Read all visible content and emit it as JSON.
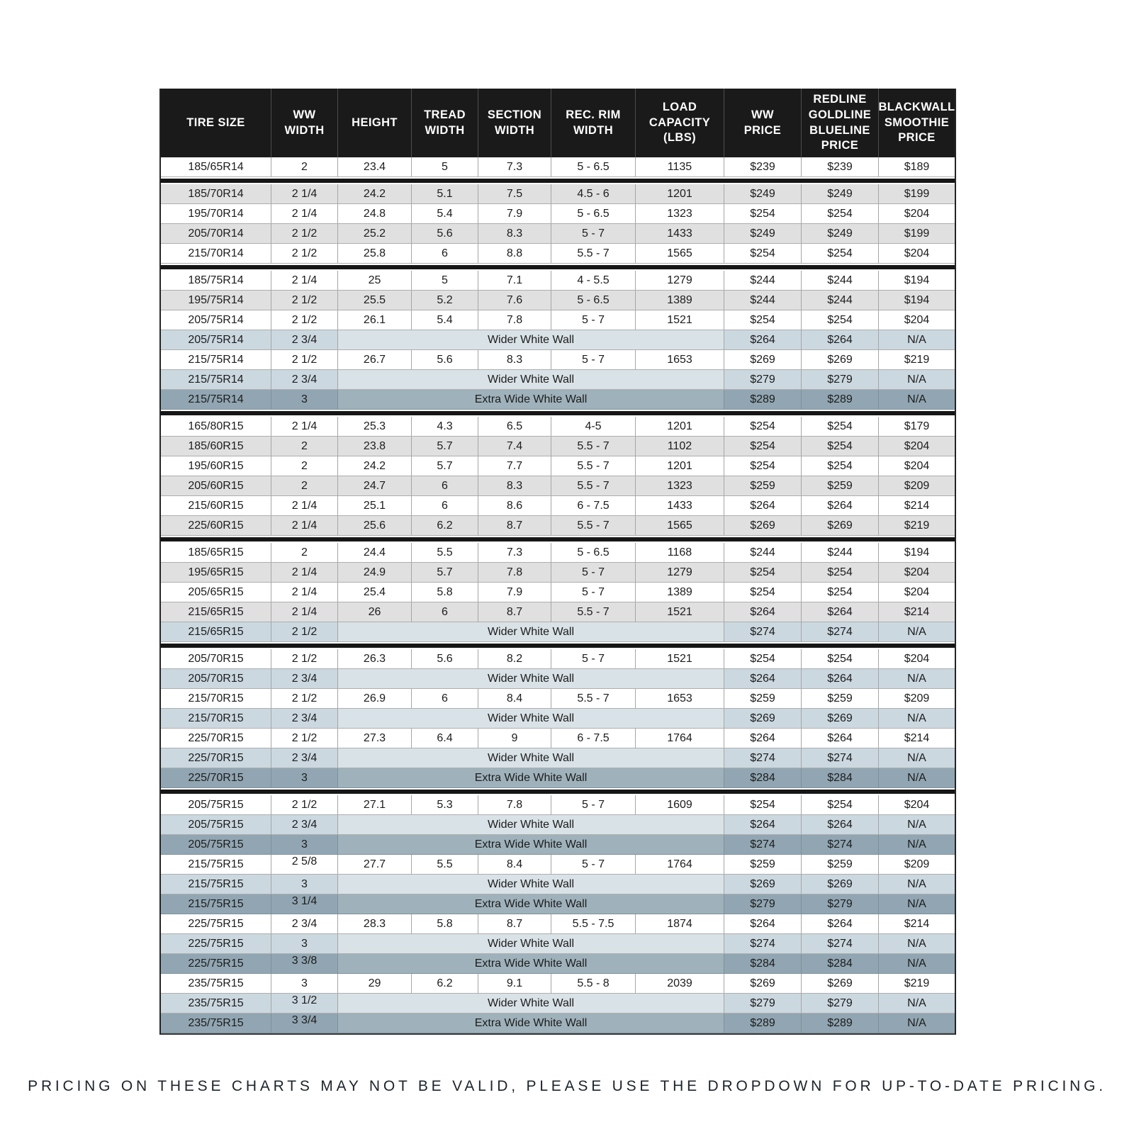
{
  "page": {
    "footer_note": "PRICING ON THESE CHARTS MAY NOT BE VALID, PLEASE USE THE DROPDOWN FOR UP-TO-DATE PRICING."
  },
  "colors": {
    "header_bg": "#1a1a1a",
    "header_text": "#ffffff",
    "row_white": "#ffffff",
    "row_gray": "#e0e0e0",
    "row_wider_whitewall_blue": "#cbd8e0",
    "row_extra_wide_whitewall_slate": "#91a6b2",
    "group_separator": "#161616",
    "grid_line": "#a6a6a6",
    "body_text": "#1c1c1c"
  },
  "chart_data": {
    "type": "table",
    "title": "",
    "column_keys": [
      "tire_size",
      "ww_width",
      "height",
      "tread_width",
      "section_width",
      "rec_rim_width",
      "load_capacity_lbs",
      "ww_price",
      "redline_goldline_blueline_price",
      "blackwall_smoothie_price"
    ],
    "columns": [
      "TIRE SIZE",
      "WW WIDTH",
      "HEIGHT",
      "TREAD WIDTH",
      "SECTION WIDTH",
      "REC. RIM WIDTH",
      "LOAD CAPACITY (LBS)",
      "WW PRICE",
      "REDLINE GOLDLINE BLUELINE PRICE",
      "BLACKWALL SMOOTHIE PRICE"
    ],
    "header_lines": [
      [
        "TIRE SIZE"
      ],
      [
        "WW",
        "WIDTH"
      ],
      [
        "HEIGHT"
      ],
      [
        "TREAD",
        "WIDTH"
      ],
      [
        "SECTION",
        "WIDTH"
      ],
      [
        "REC. RIM",
        "WIDTH"
      ],
      [
        "LOAD",
        "CAPACITY",
        "(LBS)"
      ],
      [
        "WW",
        "PRICE"
      ],
      [
        "REDLINE",
        "GOLDLINE",
        "BLUELINE",
        "PRICE"
      ],
      [
        "BLACKWALL",
        "SMOOTHIE",
        "PRICE"
      ]
    ],
    "groups": [
      {
        "rows": [
          {
            "tire_size": "185/65R14",
            "ww_width": "2",
            "height": "23.4",
            "tread_width": "5",
            "section_width": "7.3",
            "rec_rim_width": "5 - 6.5",
            "load_capacity": "1135",
            "ww_price": "$239",
            "line_price": "$239",
            "blackwall_price": "$189",
            "shade": "white"
          }
        ]
      },
      {
        "rows": [
          {
            "tire_size": "185/70R14",
            "ww_width": "2 1/4",
            "height": "24.2",
            "tread_width": "5.1",
            "section_width": "7.5",
            "rec_rim_width": "4.5 - 6",
            "load_capacity": "1201",
            "ww_price": "$249",
            "line_price": "$249",
            "blackwall_price": "$199",
            "shade": "gray"
          },
          {
            "tire_size": "195/70R14",
            "ww_width": "2 1/4",
            "height": "24.8",
            "tread_width": "5.4",
            "section_width": "7.9",
            "rec_rim_width": "5 - 6.5",
            "load_capacity": "1323",
            "ww_price": "$254",
            "line_price": "$254",
            "blackwall_price": "$204",
            "shade": "white"
          },
          {
            "tire_size": "205/70R14",
            "ww_width": "2 1/2",
            "height": "25.2",
            "tread_width": "5.6",
            "section_width": "8.3",
            "rec_rim_width": "5 - 7",
            "load_capacity": "1433",
            "ww_price": "$249",
            "line_price": "$249",
            "blackwall_price": "$199",
            "shade": "gray"
          },
          {
            "tire_size": "215/70R14",
            "ww_width": "2 1/2",
            "height": "25.8",
            "tread_width": "6",
            "section_width": "8.8",
            "rec_rim_width": "5.5 - 7",
            "load_capacity": "1565",
            "ww_price": "$254",
            "line_price": "$254",
            "blackwall_price": "$204",
            "shade": "white"
          }
        ]
      },
      {
        "rows": [
          {
            "tire_size": "185/75R14",
            "ww_width": "2 1/4",
            "height": "25",
            "tread_width": "5",
            "section_width": "7.1",
            "rec_rim_width": "4 - 5.5",
            "load_capacity": "1279",
            "ww_price": "$244",
            "line_price": "$244",
            "blackwall_price": "$194",
            "shade": "white"
          },
          {
            "tire_size": "195/75R14",
            "ww_width": "2 1/2",
            "height": "25.5",
            "tread_width": "5.2",
            "section_width": "7.6",
            "rec_rim_width": "5 - 6.5",
            "load_capacity": "1389",
            "ww_price": "$244",
            "line_price": "$244",
            "blackwall_price": "$194",
            "shade": "gray"
          },
          {
            "tire_size": "205/75R14",
            "ww_width": "2 1/2",
            "height": "26.1",
            "tread_width": "5.4",
            "section_width": "7.8",
            "rec_rim_width": "5 - 7",
            "load_capacity": "1521",
            "ww_price": "$254",
            "line_price": "$254",
            "blackwall_price": "$204",
            "shade": "white"
          },
          {
            "tire_size": "205/75R14",
            "ww_width": "2 3/4",
            "wall_label": "Wider White Wall",
            "ww_price": "$264",
            "line_price": "$264",
            "blackwall_price": "N/A",
            "shade": "blue"
          },
          {
            "tire_size": "215/75R14",
            "ww_width": "2 1/2",
            "height": "26.7",
            "tread_width": "5.6",
            "section_width": "8.3",
            "rec_rim_width": "5 - 7",
            "load_capacity": "1653",
            "ww_price": "$269",
            "line_price": "$269",
            "blackwall_price": "$219",
            "shade": "white"
          },
          {
            "tire_size": "215/75R14",
            "ww_width": "2 3/4",
            "wall_label": "Wider White Wall",
            "ww_price": "$279",
            "line_price": "$279",
            "blackwall_price": "N/A",
            "shade": "blue"
          },
          {
            "tire_size": "215/75R14",
            "ww_width": "3",
            "wall_label": "Extra Wide White Wall",
            "ww_price": "$289",
            "line_price": "$289",
            "blackwall_price": "N/A",
            "shade": "slate"
          }
        ]
      },
      {
        "rows": [
          {
            "tire_size": "165/80R15",
            "ww_width": "2 1/4",
            "height": "25.3",
            "tread_width": "4.3",
            "section_width": "6.5",
            "rec_rim_width": "4-5",
            "load_capacity": "1201",
            "ww_price": "$254",
            "line_price": "$254",
            "blackwall_price": "$179",
            "shade": "white"
          },
          {
            "tire_size": "185/60R15",
            "ww_width": "2",
            "height": "23.8",
            "tread_width": "5.7",
            "section_width": "7.4",
            "rec_rim_width": "5.5 - 7",
            "load_capacity": "1102",
            "ww_price": "$254",
            "line_price": "$254",
            "blackwall_price": "$204",
            "shade": "gray"
          },
          {
            "tire_size": "195/60R15",
            "ww_width": "2",
            "height": "24.2",
            "tread_width": "5.7",
            "section_width": "7.7",
            "rec_rim_width": "5.5 - 7",
            "load_capacity": "1201",
            "ww_price": "$254",
            "line_price": "$254",
            "blackwall_price": "$204",
            "shade": "white"
          },
          {
            "tire_size": "205/60R15",
            "ww_width": "2",
            "height": "24.7",
            "tread_width": "6",
            "section_width": "8.3",
            "rec_rim_width": "5.5 - 7",
            "load_capacity": "1323",
            "ww_price": "$259",
            "line_price": "$259",
            "blackwall_price": "$209",
            "shade": "gray"
          },
          {
            "tire_size": "215/60R15",
            "ww_width": "2 1/4",
            "height": "25.1",
            "tread_width": "6",
            "section_width": "8.6",
            "rec_rim_width": "6 - 7.5",
            "load_capacity": "1433",
            "ww_price": "$264",
            "line_price": "$264",
            "blackwall_price": "$214",
            "shade": "white"
          },
          {
            "tire_size": "225/60R15",
            "ww_width": "2 1/4",
            "height": "25.6",
            "tread_width": "6.2",
            "section_width": "8.7",
            "rec_rim_width": "5.5 - 7",
            "load_capacity": "1565",
            "ww_price": "$269",
            "line_price": "$269",
            "blackwall_price": "$219",
            "shade": "gray"
          }
        ]
      },
      {
        "rows": [
          {
            "tire_size": "185/65R15",
            "ww_width": "2",
            "height": "24.4",
            "tread_width": "5.5",
            "section_width": "7.3",
            "rec_rim_width": "5 - 6.5",
            "load_capacity": "1168",
            "ww_price": "$244",
            "line_price": "$244",
            "blackwall_price": "$194",
            "shade": "white"
          },
          {
            "tire_size": "195/65R15",
            "ww_width": "2 1/4",
            "height": "24.9",
            "tread_width": "5.7",
            "section_width": "7.8",
            "rec_rim_width": "5 - 7",
            "load_capacity": "1279",
            "ww_price": "$254",
            "line_price": "$254",
            "blackwall_price": "$204",
            "shade": "gray"
          },
          {
            "tire_size": "205/65R15",
            "ww_width": "2 1/4",
            "height": "25.4",
            "tread_width": "5.8",
            "section_width": "7.9",
            "rec_rim_width": "5 - 7",
            "load_capacity": "1389",
            "ww_price": "$254",
            "line_price": "$254",
            "blackwall_price": "$204",
            "shade": "white"
          },
          {
            "tire_size": "215/65R15",
            "ww_width": "2 1/4",
            "height": "26",
            "tread_width": "6",
            "section_width": "8.7",
            "rec_rim_width": "5.5 - 7",
            "load_capacity": "1521",
            "ww_price": "$264",
            "line_price": "$264",
            "blackwall_price": "$214",
            "shade": "gray"
          },
          {
            "tire_size": "215/65R15",
            "ww_width": "2 1/2",
            "wall_label": "Wider White Wall",
            "ww_price": "$274",
            "line_price": "$274",
            "blackwall_price": "N/A",
            "shade": "blue"
          }
        ]
      },
      {
        "rows": [
          {
            "tire_size": "205/70R15",
            "ww_width": "2 1/2",
            "height": "26.3",
            "tread_width": "5.6",
            "section_width": "8.2",
            "rec_rim_width": "5 - 7",
            "load_capacity": "1521",
            "ww_price": "$254",
            "line_price": "$254",
            "blackwall_price": "$204",
            "shade": "white"
          },
          {
            "tire_size": "205/70R15",
            "ww_width": "2 3/4",
            "wall_label": "Wider White Wall",
            "ww_price": "$264",
            "line_price": "$264",
            "blackwall_price": "N/A",
            "shade": "blue"
          },
          {
            "tire_size": "215/70R15",
            "ww_width": "2 1/2",
            "height": "26.9",
            "tread_width": "6",
            "section_width": "8.4",
            "rec_rim_width": "5.5 - 7",
            "load_capacity": "1653",
            "ww_price": "$259",
            "line_price": "$259",
            "blackwall_price": "$209",
            "shade": "white"
          },
          {
            "tire_size": "215/70R15",
            "ww_width": "2 3/4",
            "wall_label": "Wider White Wall",
            "ww_price": "$269",
            "line_price": "$269",
            "blackwall_price": "N/A",
            "shade": "blue"
          },
          {
            "tire_size": "225/70R15",
            "ww_width": "2 1/2",
            "height": "27.3",
            "tread_width": "6.4",
            "section_width": "9",
            "rec_rim_width": "6 - 7.5",
            "load_capacity": "1764",
            "ww_price": "$264",
            "line_price": "$264",
            "blackwall_price": "$214",
            "shade": "white"
          },
          {
            "tire_size": "225/70R15",
            "ww_width": "2 3/4",
            "wall_label": "Wider White Wall",
            "ww_price": "$274",
            "line_price": "$274",
            "blackwall_price": "N/A",
            "shade": "blue"
          },
          {
            "tire_size": "225/70R15",
            "ww_width": "3",
            "wall_label": "Extra Wide White Wall",
            "ww_price": "$284",
            "line_price": "$284",
            "blackwall_price": "N/A",
            "shade": "slate"
          }
        ]
      },
      {
        "rows": [
          {
            "tire_size": "205/75R15",
            "ww_width": "2 1/2",
            "height": "27.1",
            "tread_width": "5.3",
            "section_width": "7.8",
            "rec_rim_width": "5 - 7",
            "load_capacity": "1609",
            "ww_price": "$254",
            "line_price": "$254",
            "blackwall_price": "$204",
            "shade": "white"
          },
          {
            "tire_size": "205/75R15",
            "ww_width": "2 3/4",
            "wall_label": "Wider White Wall",
            "ww_price": "$264",
            "line_price": "$264",
            "blackwall_price": "N/A",
            "shade": "blue"
          },
          {
            "tire_size": "205/75R15",
            "ww_width": "3",
            "wall_label": "Extra Wide White Wall",
            "ww_price": "$274",
            "line_price": "$274",
            "blackwall_price": "N/A",
            "shade": "slate"
          },
          {
            "tire_size": "215/75R15",
            "ww_width": "2 5/8",
            "raised": true,
            "height": "27.7",
            "tread_width": "5.5",
            "section_width": "8.4",
            "rec_rim_width": "5 - 7",
            "load_capacity": "1764",
            "ww_price": "$259",
            "line_price": "$259",
            "blackwall_price": "$209",
            "shade": "white"
          },
          {
            "tire_size": "215/75R15",
            "ww_width": "3",
            "wall_label": "Wider White Wall",
            "ww_price": "$269",
            "line_price": "$269",
            "blackwall_price": "N/A",
            "shade": "blue"
          },
          {
            "tire_size": "215/75R15",
            "ww_width": "3 1/4",
            "raised": true,
            "wall_label": "Extra Wide White Wall",
            "ww_price": "$279",
            "line_price": "$279",
            "blackwall_price": "N/A",
            "shade": "slate"
          },
          {
            "tire_size": "225/75R15",
            "ww_width": "2 3/4",
            "height": "28.3",
            "tread_width": "5.8",
            "section_width": "8.7",
            "rec_rim_width": "5.5 - 7.5",
            "load_capacity": "1874",
            "ww_price": "$264",
            "line_price": "$264",
            "blackwall_price": "$214",
            "shade": "white"
          },
          {
            "tire_size": "225/75R15",
            "ww_width": "3",
            "wall_label": "Wider White Wall",
            "ww_price": "$274",
            "line_price": "$274",
            "blackwall_price": "N/A",
            "shade": "blue"
          },
          {
            "tire_size": "225/75R15",
            "ww_width": "3 3/8",
            "raised": true,
            "wall_label": "Extra Wide White Wall",
            "ww_price": "$284",
            "line_price": "$284",
            "blackwall_price": "N/A",
            "shade": "slate"
          },
          {
            "tire_size": "235/75R15",
            "ww_width": "3",
            "height": "29",
            "tread_width": "6.2",
            "section_width": "9.1",
            "rec_rim_width": "5.5 - 8",
            "load_capacity": "2039",
            "ww_price": "$269",
            "line_price": "$269",
            "blackwall_price": "$219",
            "shade": "white"
          },
          {
            "tire_size": "235/75R15",
            "ww_width": "3 1/2",
            "raised": true,
            "wall_label": "Wider White Wall",
            "ww_price": "$279",
            "line_price": "$279",
            "blackwall_price": "N/A",
            "shade": "blue"
          },
          {
            "tire_size": "235/75R15",
            "ww_width": "3 3/4",
            "raised": true,
            "wall_label": "Extra Wide White Wall",
            "ww_price": "$289",
            "line_price": "$289",
            "blackwall_price": "N/A",
            "shade": "slate"
          }
        ]
      }
    ]
  }
}
